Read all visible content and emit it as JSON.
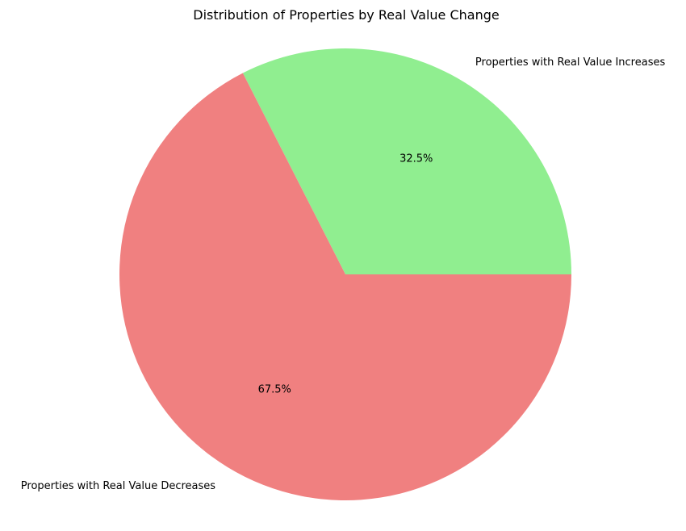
{
  "chart_data": {
    "type": "pie",
    "title": "Distribution of Properties by Real Value Change",
    "labels": [
      "Properties with Real Value Increases",
      "Properties with Real Value Decreases"
    ],
    "values": [
      32.5,
      67.5
    ],
    "percent_labels": [
      "32.5%",
      "67.5%"
    ],
    "colors": [
      "#90ee90",
      "#f08080"
    ],
    "start_angle_deg": 0,
    "direction": "counterclockwise",
    "legend": "none"
  }
}
